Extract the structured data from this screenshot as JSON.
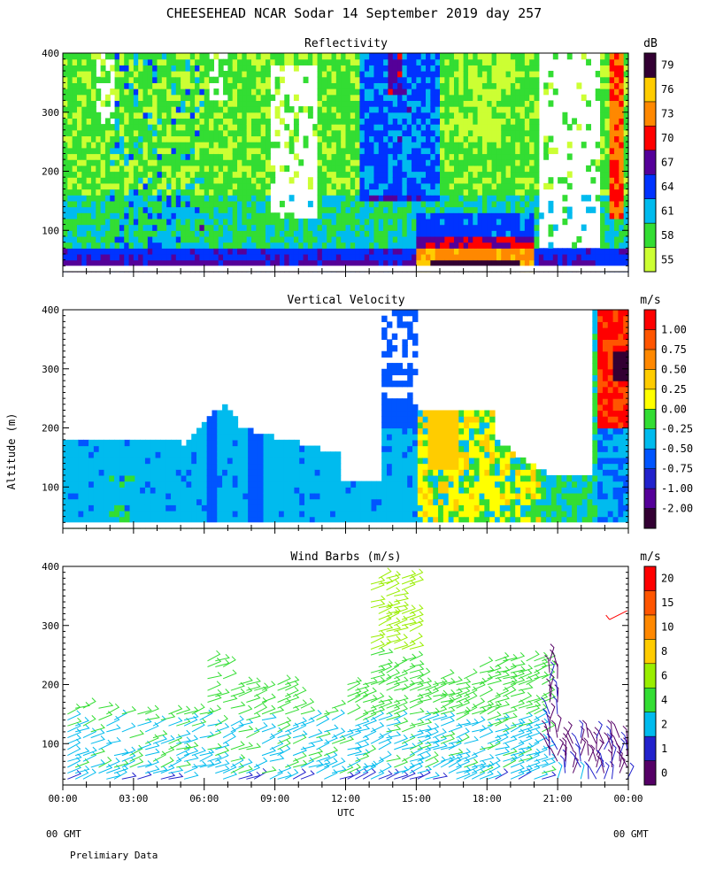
{
  "header": {
    "title": "CHEESEHEAD  NCAR Sodar  14 September 2019  day 257"
  },
  "footer": {
    "left_gmt": "00 GMT",
    "right_gmt": "00 GMT",
    "note": "Prelimiary Data"
  },
  "colors": {
    "reflectivity": [
      "#ccff33",
      "#33dd33",
      "#00bbee",
      "#0033ff",
      "#550099",
      "#ff0000",
      "#ff8800",
      "#ffcc00",
      "#330033"
    ],
    "velocity": [
      "#330033",
      "#550099",
      "#2222cc",
      "#0055ff",
      "#00bbee",
      "#33dd33",
      "#ffff00",
      "#ffcc00",
      "#ff8800",
      "#ff5500",
      "#ff0000"
    ],
    "wind": [
      "#550066",
      "#2222cc",
      "#00bbee",
      "#33dd33",
      "#99ee00",
      "#ffcc00",
      "#ff8800",
      "#ff5500",
      "#ff0000"
    ]
  },
  "chart_data": [
    {
      "type": "heatmap",
      "title": "Reflectivity",
      "units": "dB",
      "ylabel": "",
      "ylim": [
        30,
        400
      ],
      "xlim": [
        0,
        24
      ],
      "yticks": [
        100,
        200,
        300,
        400
      ],
      "colorbar": [
        "55",
        "58",
        "61",
        "64",
        "67",
        "70",
        "73",
        "76",
        "79"
      ]
    },
    {
      "type": "heatmap",
      "title": "Vertical Velocity",
      "units": "m/s",
      "ylabel": "Altitude (m)",
      "ylim": [
        30,
        400
      ],
      "xlim": [
        0,
        24
      ],
      "yticks": [
        100,
        200,
        300,
        400
      ],
      "colorbar": [
        "-2.00",
        "-1.00",
        "-0.75",
        "-0.50",
        "-0.25",
        "0.00",
        "0.25",
        "0.50",
        "0.75",
        "1.00"
      ]
    },
    {
      "type": "scatter",
      "title": "Wind Barbs (m/s)",
      "units": "m/s",
      "ylabel": "",
      "xlabel": "UTC",
      "ylim": [
        30,
        400
      ],
      "xlim": [
        0,
        24
      ],
      "yticks": [
        100,
        200,
        300,
        400
      ],
      "xticks": [
        "00:00",
        "03:00",
        "06:00",
        "09:00",
        "12:00",
        "15:00",
        "18:00",
        "21:00",
        "00:00"
      ],
      "colorbar": [
        "0",
        "1",
        "2",
        "4",
        "6",
        "8",
        "10",
        "15",
        "20"
      ]
    }
  ]
}
